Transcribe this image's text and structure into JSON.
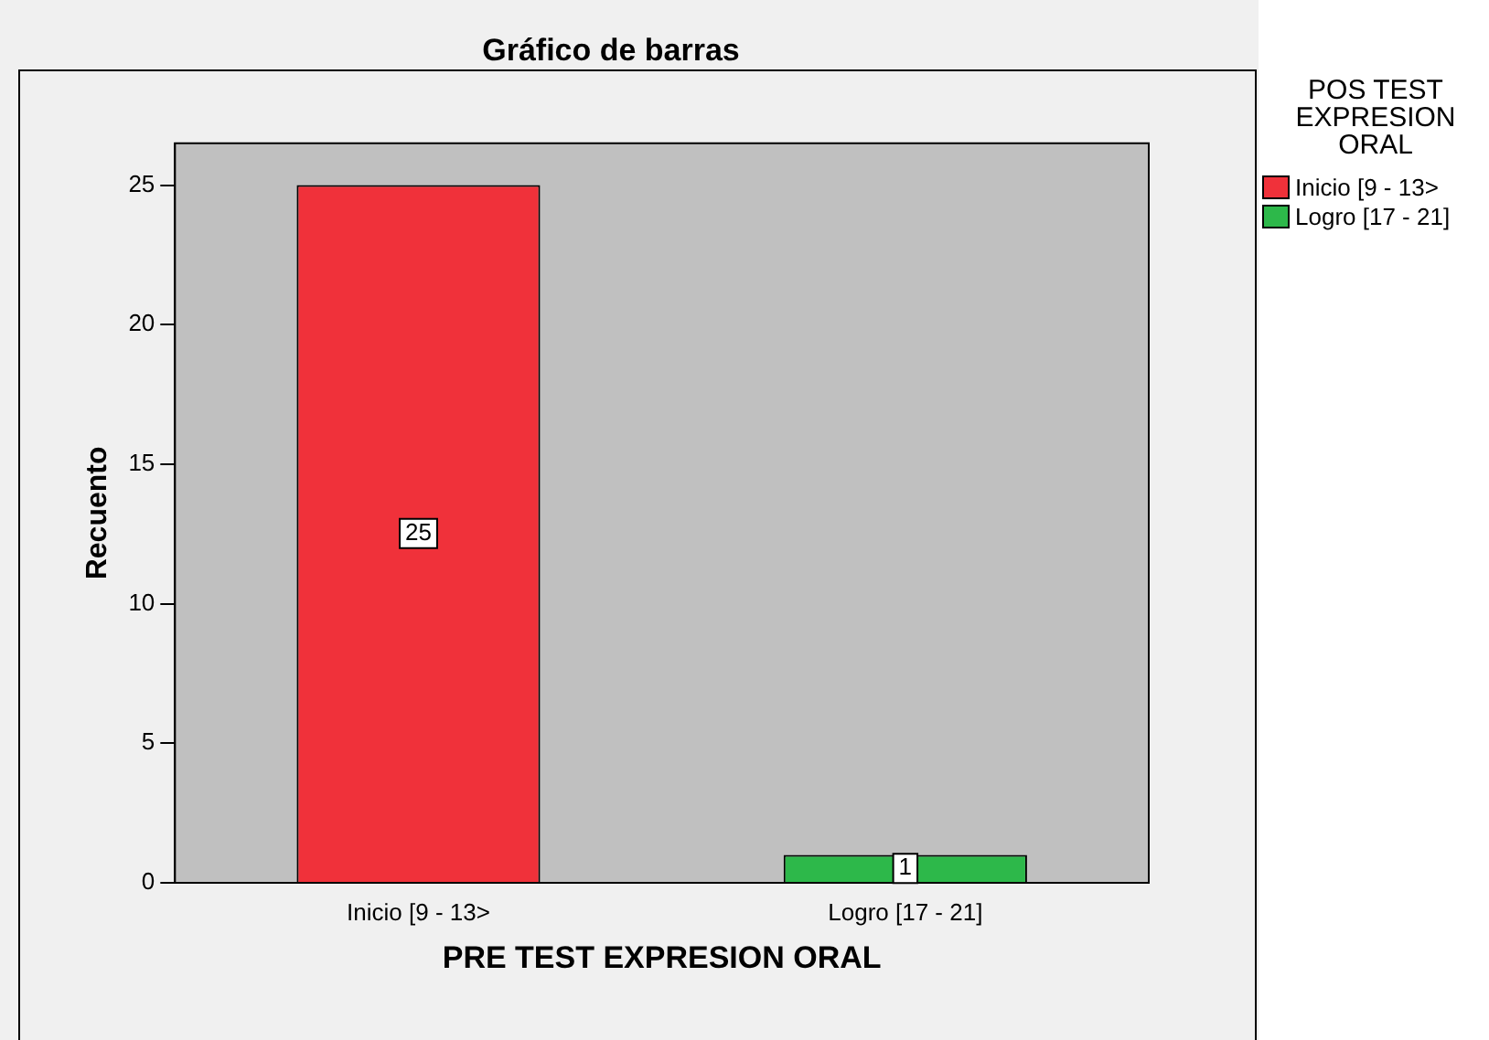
{
  "chart_data": {
    "type": "bar",
    "title": "Gráfico de barras",
    "xlabel": "PRE TEST EXPRESION ORAL",
    "ylabel": "Recuento",
    "legend_title": "POS TEST EXPRESION ORAL",
    "categories": [
      "Inicio [9 - 13>",
      "Logro [17 - 21]"
    ],
    "series": [
      {
        "name": "Inicio [9 - 13>",
        "color": "#f0313a",
        "values": [
          25,
          null
        ]
      },
      {
        "name": "Logro [17 - 21]",
        "color": "#2db84a",
        "values": [
          null,
          1
        ]
      }
    ],
    "ylim": [
      0,
      26.5
    ],
    "yticks": [
      0,
      5,
      10,
      15,
      20,
      25
    ],
    "grid": false,
    "legend": "right",
    "data_labels": true
  }
}
